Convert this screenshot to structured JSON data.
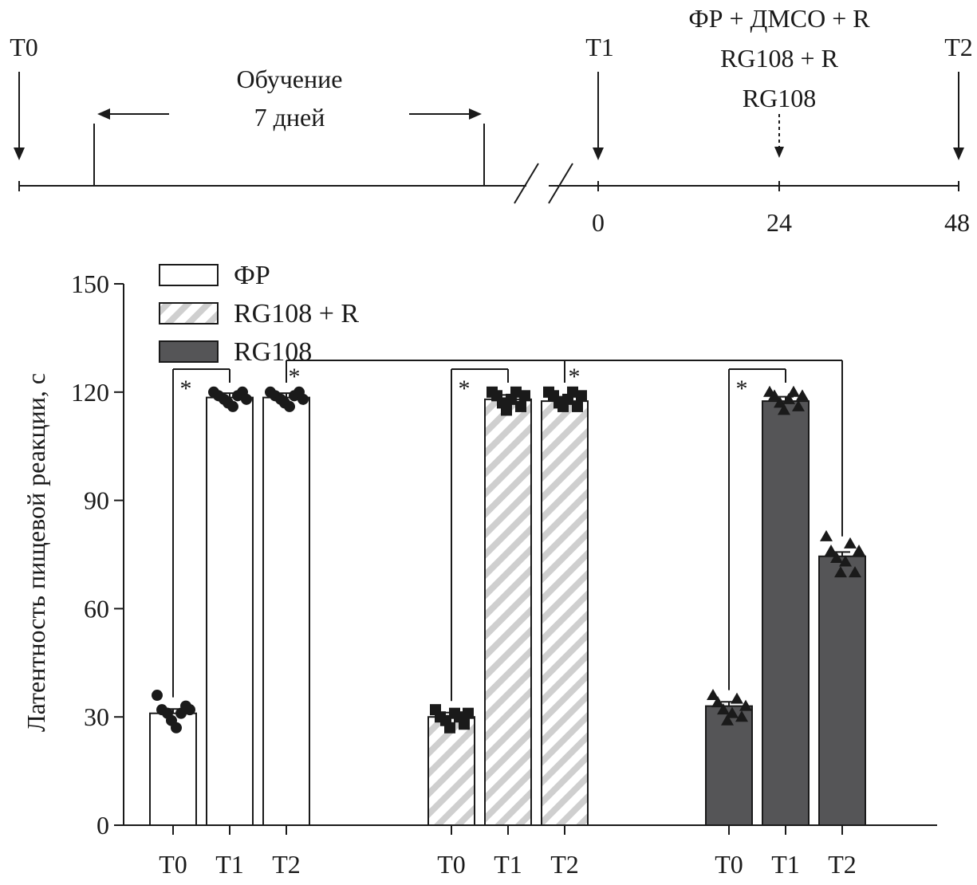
{
  "timeline": {
    "t0_label": "T0",
    "t1_label": "T1",
    "t2_label": "T2",
    "training_label_1": "Обучение",
    "training_label_2": "7 дней",
    "treat_line_1": "ФР + ДМСО + R",
    "treat_line_2": "RG108 + R",
    "treat_line_3": "RG108",
    "tick_0": "0",
    "tick_24": "24",
    "tick_48": "48"
  },
  "chart_data": {
    "type": "bar",
    "title": "",
    "xlabel": "",
    "ylabel": "Латентность пищевой реакции, с",
    "ylim": [
      0,
      150
    ],
    "yticks": [
      0,
      30,
      60,
      90,
      120,
      150
    ],
    "legend_position": "top-left",
    "categories": [
      "T0",
      "T1",
      "T2"
    ],
    "significance_marker": "*",
    "series": [
      {
        "name": "ФР",
        "fill": "white",
        "marker": "circle",
        "color": "#ffffff",
        "values": [
          31,
          118.5,
          118.5
        ],
        "points": [
          [
            36,
            32,
            31,
            29,
            27,
            31,
            33,
            32
          ],
          [
            120,
            119,
            118,
            117,
            116,
            119,
            120,
            118
          ],
          [
            120,
            119,
            118,
            117,
            116,
            119,
            120,
            118
          ]
        ]
      },
      {
        "name": "RG108 + R",
        "fill": "hatched",
        "marker": "square",
        "color": "#cccccc",
        "values": [
          30,
          118,
          117.5
        ],
        "points": [
          [
            32,
            30,
            29,
            27,
            31,
            30,
            28,
            31
          ],
          [
            120,
            119,
            117,
            115,
            118,
            120,
            116,
            119
          ],
          [
            120,
            119,
            117,
            116,
            118,
            120,
            116,
            119
          ]
        ]
      },
      {
        "name": "RG108",
        "fill": "dark",
        "marker": "triangle",
        "color": "#555557",
        "values": [
          33,
          117.5,
          74.5
        ],
        "points": [
          [
            36,
            34,
            32,
            29,
            31,
            35,
            30,
            33
          ],
          [
            120,
            119,
            117,
            115,
            118,
            120,
            116,
            119
          ],
          [
            80,
            76,
            74,
            70,
            73,
            78,
            70,
            76
          ]
        ]
      }
    ]
  }
}
